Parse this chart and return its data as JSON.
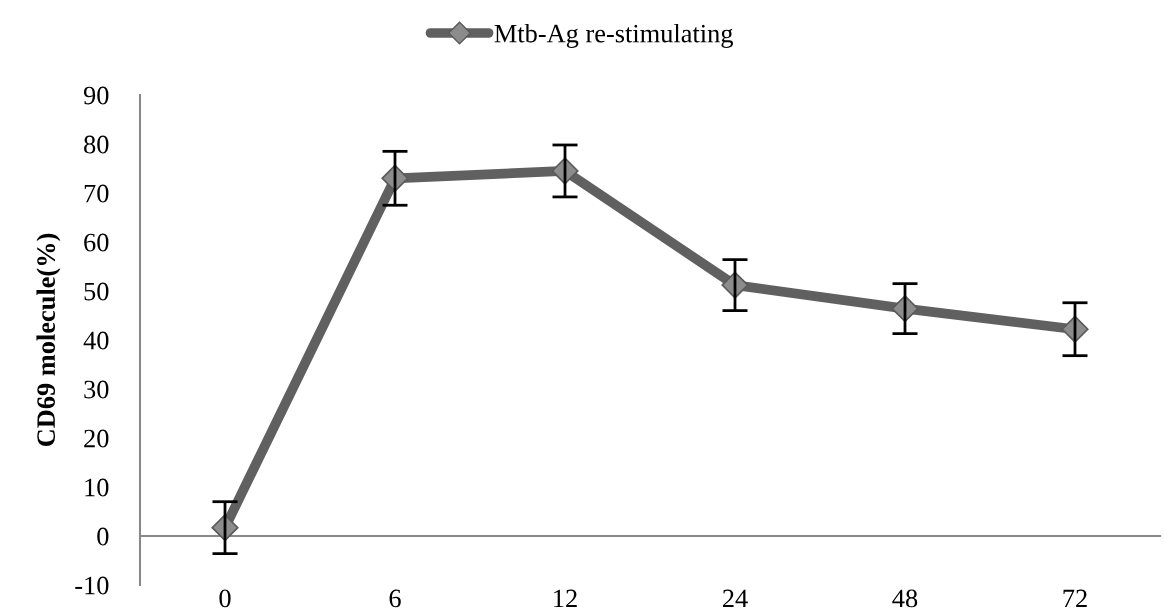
{
  "chart_data": {
    "type": "line",
    "ylabel": "CD69 molecule(%)",
    "categories": [
      "0",
      "6",
      "12",
      "24",
      "48",
      "72"
    ],
    "series": [
      {
        "name": "Mtb-Ag re-stimulating",
        "color": "#606060",
        "values": [
          1.7,
          73.0,
          74.5,
          51.2,
          46.4,
          42.2
        ],
        "errors": [
          5.3,
          5.5,
          5.3,
          5.2,
          5.1,
          5.4
        ]
      }
    ],
    "ylim": [
      -10,
      90
    ],
    "yticks": [
      -10,
      0,
      10,
      20,
      30,
      40,
      50,
      60,
      70,
      80,
      90
    ],
    "marker": "diamond",
    "line_style": "solid",
    "legend": "top",
    "grid": false
  }
}
